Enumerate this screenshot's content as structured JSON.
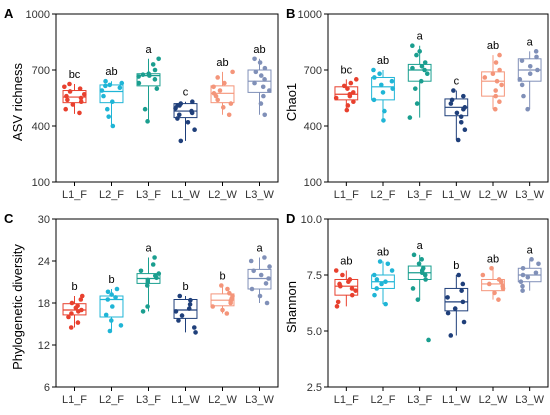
{
  "groups": [
    "L1_F",
    "L2_F",
    "L3_F",
    "L1_W",
    "L2_W",
    "L3_W"
  ],
  "colors": [
    "#e8402e",
    "#1fb5d6",
    "#1a9e8f",
    "#1f3f7a",
    "#f4957a",
    "#8090b8"
  ],
  "chart_data": [
    {
      "panel": "A",
      "type": "box",
      "ylabel": "ASV richness",
      "ylim": [
        100,
        1000
      ],
      "yticks": [
        100,
        400,
        700,
        1000
      ],
      "categories": [
        "L1_F",
        "L2_F",
        "L3_F",
        "L1_W",
        "L2_W",
        "L3_W"
      ],
      "boxes": [
        {
          "min": 465,
          "q1": 525,
          "median": 555,
          "q3": 590,
          "max": 625
        },
        {
          "min": 400,
          "q1": 525,
          "median": 585,
          "q3": 620,
          "max": 640
        },
        {
          "min": 425,
          "q1": 615,
          "median": 670,
          "q3": 680,
          "max": 760
        },
        {
          "min": 320,
          "q1": 445,
          "median": 480,
          "q3": 520,
          "max": 530
        },
        {
          "min": 460,
          "q1": 525,
          "median": 575,
          "q3": 615,
          "max": 690
        },
        {
          "min": 460,
          "q1": 580,
          "median": 640,
          "q3": 700,
          "max": 760
        }
      ],
      "points": [
        [
          470,
          490,
          515,
          530,
          540,
          550,
          560,
          570,
          585,
          600,
          610,
          625
        ],
        [
          400,
          450,
          490,
          530,
          560,
          590,
          605,
          615,
          620,
          630,
          640
        ],
        [
          425,
          490,
          600,
          630,
          650,
          665,
          670,
          675,
          680,
          700,
          730,
          760
        ],
        [
          320,
          380,
          420,
          440,
          460,
          470,
          480,
          495,
          510,
          520,
          530,
          510
        ],
        [
          460,
          500,
          520,
          540,
          560,
          575,
          590,
          610,
          630,
          660,
          690
        ],
        [
          460,
          520,
          560,
          590,
          610,
          630,
          650,
          670,
          690,
          710,
          740,
          760
        ]
      ],
      "letters": [
        "bc",
        "ab",
        "a",
        "c",
        "ab",
        "ab"
      ]
    },
    {
      "panel": "B",
      "type": "box",
      "ylabel": "Chao1",
      "ylim": [
        100,
        1000
      ],
      "yticks": [
        100,
        400,
        700,
        1000
      ],
      "categories": [
        "L1_F",
        "L2_F",
        "L3_F",
        "L1_W",
        "L2_W",
        "L3_W"
      ],
      "boxes": [
        {
          "min": 485,
          "q1": 540,
          "median": 570,
          "q3": 610,
          "max": 650
        },
        {
          "min": 430,
          "q1": 540,
          "median": 610,
          "q3": 660,
          "max": 700
        },
        {
          "min": 445,
          "q1": 640,
          "median": 700,
          "q3": 730,
          "max": 830
        },
        {
          "min": 325,
          "q1": 455,
          "median": 500,
          "q3": 545,
          "max": 590
        },
        {
          "min": 490,
          "q1": 560,
          "median": 640,
          "q3": 690,
          "max": 780
        },
        {
          "min": 490,
          "q1": 640,
          "median": 700,
          "q3": 760,
          "max": 800
        }
      ],
      "points": [
        [
          485,
          510,
          530,
          550,
          560,
          570,
          580,
          600,
          615,
          630,
          650
        ],
        [
          430,
          480,
          540,
          580,
          600,
          620,
          640,
          660,
          680,
          700
        ],
        [
          445,
          520,
          600,
          640,
          680,
          700,
          710,
          720,
          740,
          780,
          800,
          830
        ],
        [
          325,
          380,
          420,
          450,
          470,
          490,
          500,
          520,
          540,
          560,
          590
        ],
        [
          490,
          530,
          560,
          590,
          620,
          640,
          660,
          680,
          700,
          740,
          780
        ],
        [
          490,
          560,
          620,
          650,
          680,
          700,
          720,
          750,
          770,
          800
        ]
      ],
      "letters": [
        "bc",
        "ab",
        "a",
        "c",
        "ab",
        "a"
      ]
    },
    {
      "panel": "C",
      "type": "box",
      "ylabel": "Phylogenetic diversity",
      "ylim": [
        6,
        30
      ],
      "yticks": [
        6,
        12,
        18,
        24,
        30
      ],
      "categories": [
        "L1_F",
        "L2_F",
        "L3_F",
        "L1_W",
        "L2_W",
        "L3_W"
      ],
      "boxes": [
        {
          "min": 14.5,
          "q1": 16.3,
          "median": 17.0,
          "q3": 17.9,
          "max": 19.0
        },
        {
          "min": 14.0,
          "q1": 16.0,
          "median": 18.5,
          "q3": 19.0,
          "max": 20.0
        },
        {
          "min": 16.8,
          "q1": 20.8,
          "median": 21.5,
          "q3": 22.2,
          "max": 24.5
        },
        {
          "min": 13.8,
          "q1": 15.8,
          "median": 17.0,
          "q3": 18.5,
          "max": 19.0
        },
        {
          "min": 16.5,
          "q1": 17.6,
          "median": 18.4,
          "q3": 19.3,
          "max": 20.5
        },
        {
          "min": 18.0,
          "q1": 20.0,
          "median": 21.5,
          "q3": 22.8,
          "max": 24.5
        }
      ],
      "points": [
        [
          14.5,
          15.2,
          16.0,
          16.5,
          16.8,
          17.0,
          17.3,
          17.6,
          18.0,
          18.5,
          19.0
        ],
        [
          14.0,
          14.8,
          15.5,
          16.3,
          17.5,
          18.5,
          18.8,
          19.2,
          19.6,
          20.0
        ],
        [
          16.8,
          17.5,
          20.5,
          21.0,
          21.3,
          21.6,
          21.9,
          22.2,
          22.6,
          23.5,
          24.5
        ],
        [
          13.8,
          14.5,
          15.5,
          16.2,
          16.8,
          17.2,
          17.8,
          18.4,
          19.0
        ],
        [
          16.5,
          17.0,
          17.5,
          18.0,
          18.3,
          18.6,
          19.0,
          19.4,
          20.0,
          20.5
        ],
        [
          18.0,
          19.0,
          20.0,
          20.8,
          21.5,
          22.0,
          22.6,
          23.2,
          24.0,
          24.5
        ]
      ],
      "letters": [
        "b",
        "b",
        "a",
        "b",
        "b",
        "a"
      ]
    },
    {
      "panel": "D",
      "type": "box",
      "ylabel": "Shannon",
      "ylim": [
        2.5,
        10.0
      ],
      "yticks": [
        2.5,
        5.0,
        7.5,
        10.0
      ],
      "yticklabels": [
        "2.5",
        "5.0",
        "7.5",
        "10.0"
      ],
      "categories": [
        "L1_F",
        "L2_F",
        "L3_F",
        "L1_W",
        "L2_W",
        "L3_W"
      ],
      "boxes": [
        {
          "min": 6.1,
          "q1": 6.6,
          "median": 7.0,
          "q3": 7.3,
          "max": 7.7
        },
        {
          "min": 6.2,
          "q1": 6.9,
          "median": 7.2,
          "q3": 7.5,
          "max": 8.1
        },
        {
          "min": 6.4,
          "q1": 7.3,
          "median": 7.6,
          "q3": 7.9,
          "max": 8.4
        },
        {
          "min": 4.8,
          "q1": 5.9,
          "median": 6.3,
          "q3": 6.9,
          "max": 7.5
        },
        {
          "min": 6.4,
          "q1": 6.8,
          "median": 7.1,
          "q3": 7.3,
          "max": 7.8
        },
        {
          "min": 6.8,
          "q1": 7.2,
          "median": 7.5,
          "q3": 7.8,
          "max": 8.2
        }
      ],
      "points": [
        [
          6.1,
          6.3,
          6.6,
          6.8,
          6.9,
          7.0,
          7.1,
          7.2,
          7.3,
          7.5,
          7.7
        ],
        [
          6.2,
          6.6,
          6.9,
          7.1,
          7.2,
          7.3,
          7.5,
          7.7,
          8.0,
          8.1
        ],
        [
          4.6,
          6.4,
          6.9,
          7.3,
          7.5,
          7.6,
          7.7,
          7.8,
          8.0,
          8.2,
          8.4
        ],
        [
          4.8,
          5.4,
          5.8,
          6.0,
          6.3,
          6.5,
          6.8,
          7.1,
          7.5
        ],
        [
          6.4,
          6.7,
          6.9,
          7.0,
          7.1,
          7.2,
          7.3,
          7.5,
          7.8
        ],
        [
          6.8,
          7.0,
          7.2,
          7.4,
          7.5,
          7.6,
          7.8,
          8.0,
          8.2
        ]
      ],
      "letters": [
        "ab",
        "ab",
        "a",
        "b",
        "ab",
        "a"
      ]
    }
  ]
}
